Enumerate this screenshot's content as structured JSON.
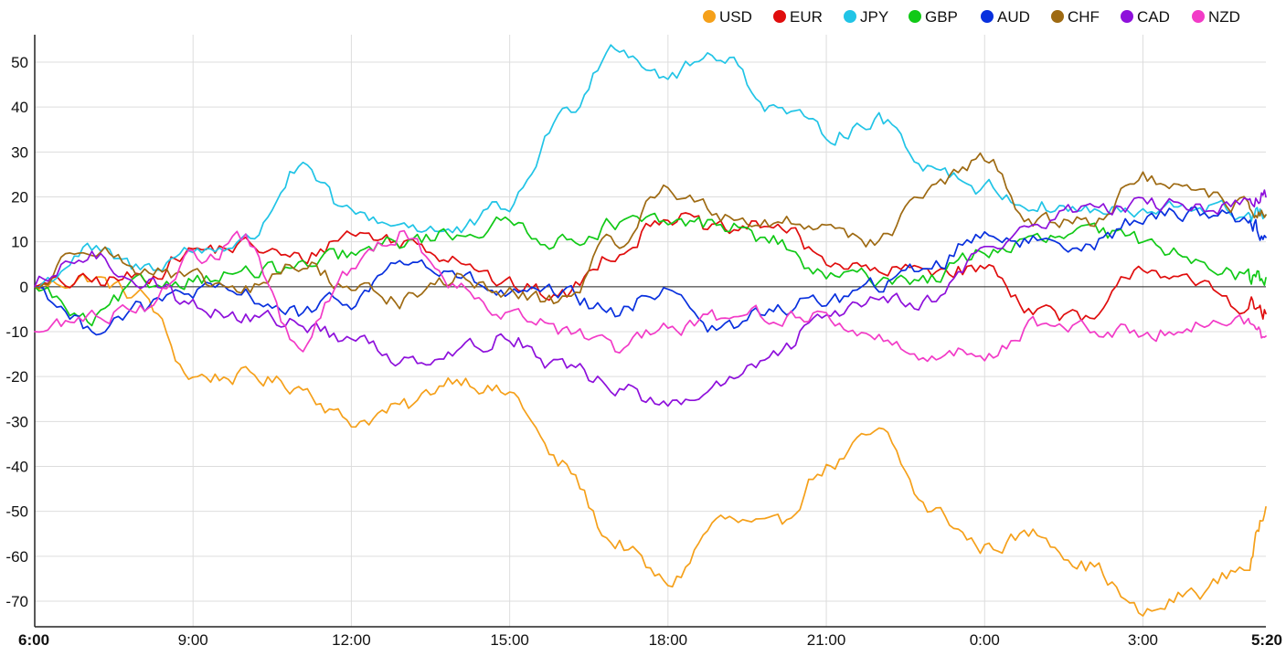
{
  "chart_data": {
    "type": "line",
    "title": "",
    "xlabel": "",
    "ylabel": "",
    "ylim": [
      -76,
      56
    ],
    "y_ticks": [
      50,
      40,
      30,
      20,
      10,
      0,
      -10,
      -20,
      -30,
      -40,
      -50,
      -60,
      -70
    ],
    "x_ticks": [
      "6:00",
      "9:00",
      "12:00",
      "15:00",
      "18:00",
      "21:00",
      "0:00",
      "3:00",
      "5:20"
    ],
    "x_range_hours": [
      0,
      23.33
    ],
    "x_tick_hours": [
      0,
      3,
      6,
      9,
      12,
      15,
      18,
      21,
      23.33
    ],
    "grid": true,
    "zero_line": true,
    "legend_position": "top-right",
    "x_hours": [
      0,
      1,
      2,
      3,
      4,
      5,
      6,
      7,
      8,
      9,
      10,
      11,
      12,
      13,
      14,
      15,
      16,
      17,
      18,
      19,
      20,
      21,
      22,
      23,
      23.33
    ],
    "series": [
      {
        "name": "USD",
        "color": "#F5A01A",
        "values": [
          0,
          2,
          -2,
          -20,
          -20,
          -22,
          -30,
          -27,
          -20,
          -24,
          -40,
          -57,
          -66,
          -52,
          -54,
          -40,
          -33,
          -50,
          -58,
          -55,
          -62,
          -73,
          -68,
          -62,
          -49
        ]
      },
      {
        "name": "EUR",
        "color": "#E00D0D",
        "values": [
          0,
          1,
          2,
          8,
          9,
          6,
          12,
          10,
          7,
          0,
          -2,
          8,
          16,
          12,
          14,
          6,
          3,
          4,
          4,
          -5,
          -8,
          5,
          0,
          -4,
          -6
        ]
      },
      {
        "name": "JPY",
        "color": "#21C4E6",
        "values": [
          0,
          8,
          4,
          8,
          10,
          26,
          16,
          14,
          12,
          18,
          38,
          54,
          47,
          52,
          40,
          34,
          37,
          27,
          22,
          18,
          17,
          16,
          18,
          16,
          16
        ]
      },
      {
        "name": "GBP",
        "color": "#11C917",
        "values": [
          0,
          -8,
          0,
          2,
          3,
          4,
          7,
          10,
          12,
          14,
          10,
          14,
          14,
          14,
          10,
          2,
          2,
          2,
          8,
          10,
          12,
          10,
          7,
          2,
          2
        ]
      },
      {
        "name": "AUD",
        "color": "#0830DE",
        "values": [
          0,
          -9,
          -5,
          -1,
          -2,
          -6,
          -3,
          6,
          2,
          -2,
          -2,
          -6,
          0,
          -10,
          -5,
          -3,
          0,
          5,
          12,
          10,
          10,
          15,
          17,
          15,
          11
        ]
      },
      {
        "name": "CHF",
        "color": "#9E6A12",
        "values": [
          0,
          10,
          4,
          1,
          -1,
          5,
          0,
          -3,
          2,
          -2,
          -3,
          10,
          22,
          16,
          14,
          14,
          10,
          22,
          28,
          14,
          15,
          24,
          20,
          18,
          16
        ]
      },
      {
        "name": "CAD",
        "color": "#8E10DB",
        "values": [
          0,
          7,
          2,
          -4,
          -7,
          -8,
          -12,
          -16,
          -14,
          -11,
          -18,
          -22,
          -27,
          -22,
          -16,
          -6,
          -2,
          -3,
          8,
          14,
          18,
          18,
          18,
          18,
          20
        ]
      },
      {
        "name": "NZD",
        "color": "#F23BC7",
        "values": [
          -10,
          -7,
          -4,
          6,
          10,
          -14,
          4,
          12,
          0,
          -5,
          -10,
          -14,
          -10,
          -7,
          -6,
          -7,
          -12,
          -15,
          -15,
          -8,
          -10,
          -10,
          -8,
          -8,
          -11
        ]
      }
    ]
  }
}
